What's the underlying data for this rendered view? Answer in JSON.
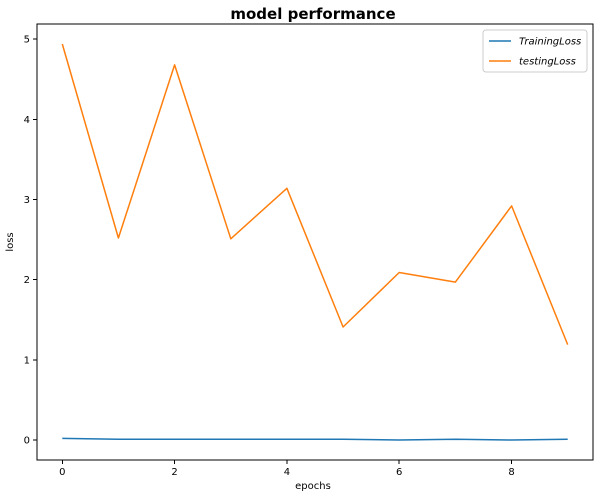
{
  "chart_data": {
    "type": "line",
    "title": "model performance",
    "xlabel": "epochs",
    "ylabel": "loss",
    "x": [
      0,
      1,
      2,
      3,
      4,
      5,
      6,
      7,
      8,
      9
    ],
    "xlim": [
      -0.45,
      9.45
    ],
    "ylim": [
      -0.25,
      5.19
    ],
    "xticks": [
      0,
      2,
      4,
      6,
      8
    ],
    "yticks": [
      0,
      1,
      2,
      3,
      4,
      5
    ],
    "grid": false,
    "legend_position": "top-right",
    "series": [
      {
        "name": "TrainingLoss",
        "color": "#1f77b4",
        "values": [
          0.02,
          0.01,
          0.01,
          0.01,
          0.01,
          0.01,
          0.0,
          0.01,
          0.0,
          0.01
        ]
      },
      {
        "name": "testingLoss",
        "color": "#ff7f0e",
        "values": [
          4.94,
          2.52,
          4.68,
          2.51,
          3.14,
          1.41,
          2.09,
          1.97,
          2.92,
          1.19
        ]
      }
    ]
  }
}
